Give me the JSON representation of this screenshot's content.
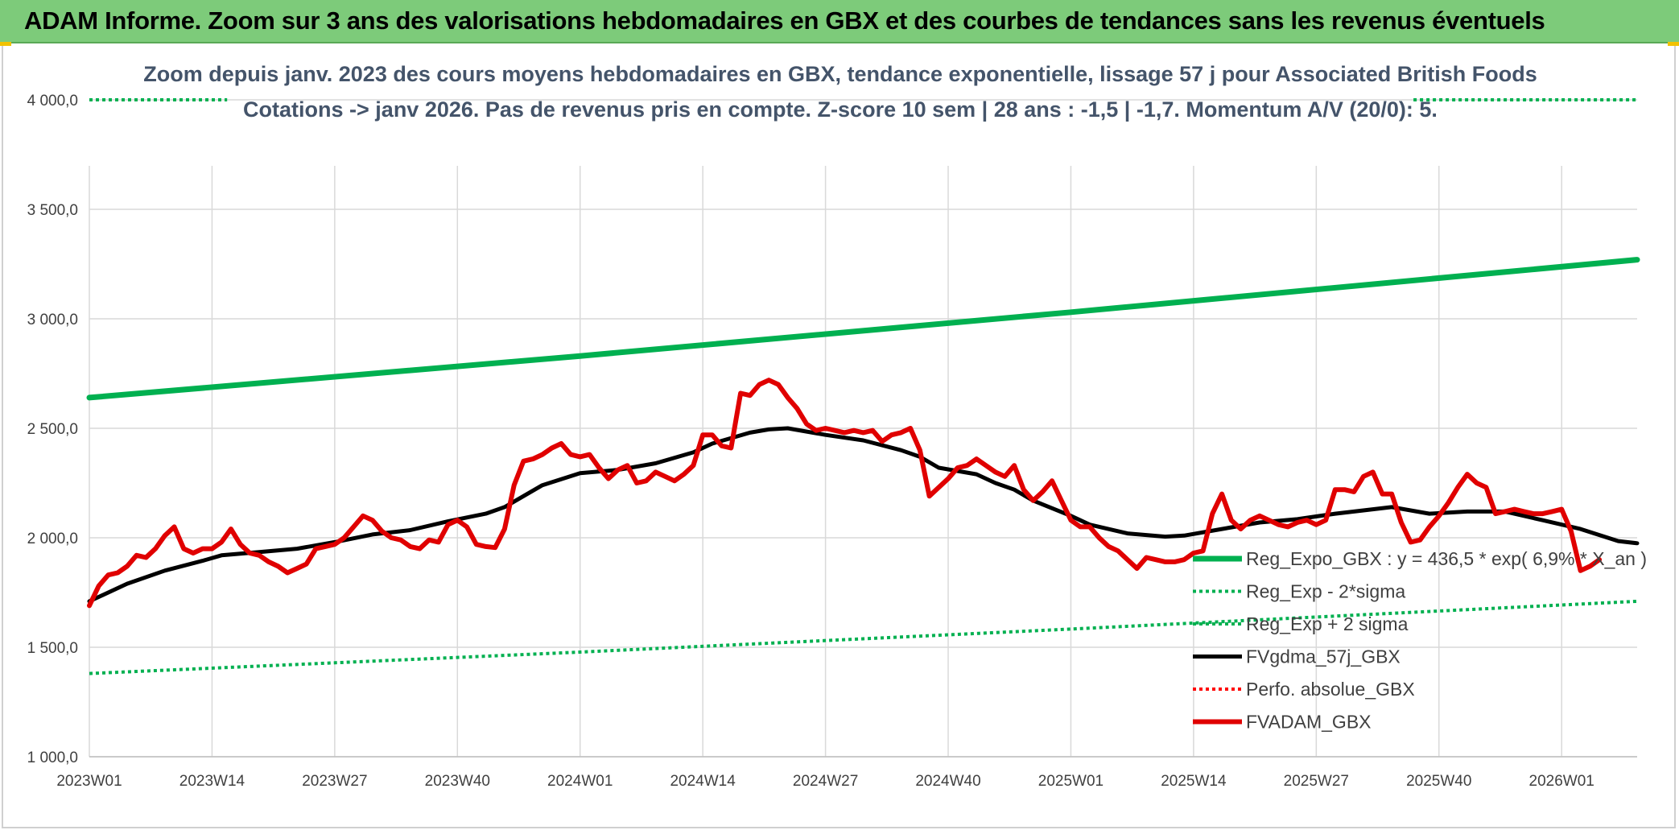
{
  "banner": {
    "title": "ADAM Informe. Zoom sur 3 ans des valorisations hebdomadaires en GBX et des courbes de tendances sans les revenus éventuels"
  },
  "chart_data": {
    "type": "line",
    "title_line1": "Zoom depuis janv. 2023 des cours moyens hebdomadaires en GBX, tendance exponentielle, lissage 57 j pour Associated British Foods",
    "title_line2": "Cotations -> janv 2026. Pas de revenus pris en compte. Z-score 10 sem | 28 ans : -1,5 | -1,7. Momentum A/V (20/0): 5.",
    "ylim": [
      1000,
      4000
    ],
    "y_ticks": [
      1000,
      1500,
      2000,
      2500,
      3000,
      3500,
      4000
    ],
    "y_tick_labels": [
      "1 000,0",
      "1 500,0",
      "2 000,0",
      "2 500,0",
      "3 000,0",
      "3 500,0",
      "4 000,0"
    ],
    "x_range": [
      0,
      164
    ],
    "x_ticks": [
      0,
      13,
      26,
      39,
      52,
      65,
      78,
      91,
      104,
      117,
      130,
      143,
      156
    ],
    "x_tick_labels": [
      "2023W01",
      "2023W14",
      "2023W27",
      "2023W40",
      "2024W01",
      "2024W14",
      "2024W27",
      "2024W40",
      "2025W01",
      "2025W14",
      "2025W27",
      "2025W40",
      "2026W01"
    ],
    "grid": true,
    "legend_position": "bottom-right",
    "series": [
      {
        "name": "Reg_Expo_GBX : y = 436,5 * exp( 6,9% *  X_an )",
        "color": "#00b050",
        "style": "solid",
        "width": 7,
        "points": [
          [
            0,
            2640
          ],
          [
            52,
            2830
          ],
          [
            104,
            3030
          ],
          [
            164,
            3270
          ]
        ]
      },
      {
        "name": "Reg_Exp - 2*sigma",
        "color": "#00b050",
        "style": "dotted",
        "width": 4,
        "points": [
          [
            0,
            1380
          ],
          [
            52,
            1478
          ],
          [
            104,
            1583
          ],
          [
            164,
            1710
          ]
        ]
      },
      {
        "name": "Reg_Exp + 2 sigma",
        "color": "#00b050",
        "style": "dotted",
        "width": 4,
        "points": [
          [
            0,
            4000
          ],
          [
            14.6,
            4000
          ]
        ],
        "points_b": [
          [
            140.3,
            4000
          ],
          [
            164,
            4000
          ]
        ]
      },
      {
        "name": "FVgdma_57j_GBX",
        "color": "#000000",
        "style": "solid",
        "width": 5,
        "points": [
          [
            0,
            1710
          ],
          [
            4,
            1790
          ],
          [
            8,
            1850
          ],
          [
            12,
            1895
          ],
          [
            14,
            1920
          ],
          [
            18,
            1935
          ],
          [
            22,
            1950
          ],
          [
            26,
            1980
          ],
          [
            30,
            2015
          ],
          [
            34,
            2035
          ],
          [
            38,
            2075
          ],
          [
            42,
            2110
          ],
          [
            44,
            2140
          ],
          [
            48,
            2240
          ],
          [
            52,
            2295
          ],
          [
            56,
            2310
          ],
          [
            60,
            2340
          ],
          [
            64,
            2390
          ],
          [
            66,
            2430
          ],
          [
            70,
            2480
          ],
          [
            72,
            2495
          ],
          [
            74,
            2500
          ],
          [
            78,
            2470
          ],
          [
            82,
            2445
          ],
          [
            86,
            2400
          ],
          [
            88,
            2370
          ],
          [
            90,
            2320
          ],
          [
            94,
            2290
          ],
          [
            96,
            2250
          ],
          [
            98,
            2220
          ],
          [
            100,
            2170
          ],
          [
            104,
            2100
          ],
          [
            106,
            2060
          ],
          [
            110,
            2020
          ],
          [
            114,
            2005
          ],
          [
            116,
            2010
          ],
          [
            120,
            2040
          ],
          [
            124,
            2070
          ],
          [
            128,
            2085
          ],
          [
            132,
            2110
          ],
          [
            136,
            2130
          ],
          [
            138,
            2140
          ],
          [
            142,
            2110
          ],
          [
            146,
            2120
          ],
          [
            150,
            2120
          ],
          [
            154,
            2080
          ],
          [
            158,
            2040
          ],
          [
            162,
            1985
          ],
          [
            164,
            1975
          ]
        ]
      },
      {
        "name": "Perfo. absolue_GBX",
        "color": "#ff0000",
        "style": "dotted",
        "width": 4,
        "points": []
      },
      {
        "name": "FVADAM_GBX",
        "color": "#e00000",
        "style": "solid",
        "width": 6,
        "points": [
          [
            0,
            1690
          ],
          [
            1,
            1780
          ],
          [
            2,
            1830
          ],
          [
            3,
            1840
          ],
          [
            4,
            1870
          ],
          [
            5,
            1920
          ],
          [
            6,
            1910
          ],
          [
            7,
            1950
          ],
          [
            8,
            2010
          ],
          [
            9,
            2050
          ],
          [
            10,
            1950
          ],
          [
            11,
            1930
          ],
          [
            12,
            1950
          ],
          [
            13,
            1950
          ],
          [
            14,
            1980
          ],
          [
            15,
            2040
          ],
          [
            16,
            1970
          ],
          [
            17,
            1930
          ],
          [
            18,
            1920
          ],
          [
            19,
            1890
          ],
          [
            20,
            1870
          ],
          [
            21,
            1840
          ],
          [
            22,
            1860
          ],
          [
            23,
            1880
          ],
          [
            24,
            1950
          ],
          [
            25,
            1960
          ],
          [
            26,
            1970
          ],
          [
            27,
            2000
          ],
          [
            28,
            2050
          ],
          [
            29,
            2100
          ],
          [
            30,
            2080
          ],
          [
            31,
            2030
          ],
          [
            32,
            2000
          ],
          [
            33,
            1990
          ],
          [
            34,
            1960
          ],
          [
            35,
            1950
          ],
          [
            36,
            1990
          ],
          [
            37,
            1980
          ],
          [
            38,
            2060
          ],
          [
            39,
            2080
          ],
          [
            40,
            2050
          ],
          [
            41,
            1970
          ],
          [
            42,
            1960
          ],
          [
            43,
            1955
          ],
          [
            44,
            2040
          ],
          [
            45,
            2240
          ],
          [
            46,
            2350
          ],
          [
            47,
            2360
          ],
          [
            48,
            2380
          ],
          [
            49,
            2410
          ],
          [
            50,
            2430
          ],
          [
            51,
            2380
          ],
          [
            52,
            2370
          ],
          [
            53,
            2380
          ],
          [
            54,
            2320
          ],
          [
            55,
            2270
          ],
          [
            56,
            2310
          ],
          [
            57,
            2330
          ],
          [
            58,
            2250
          ],
          [
            59,
            2260
          ],
          [
            60,
            2300
          ],
          [
            61,
            2280
          ],
          [
            62,
            2260
          ],
          [
            63,
            2290
          ],
          [
            64,
            2330
          ],
          [
            65,
            2470
          ],
          [
            66,
            2470
          ],
          [
            67,
            2420
          ],
          [
            68,
            2410
          ],
          [
            69,
            2660
          ],
          [
            70,
            2650
          ],
          [
            71,
            2700
          ],
          [
            72,
            2720
          ],
          [
            73,
            2700
          ],
          [
            74,
            2640
          ],
          [
            75,
            2590
          ],
          [
            76,
            2520
          ],
          [
            77,
            2490
          ],
          [
            78,
            2500
          ],
          [
            79,
            2490
          ],
          [
            80,
            2480
          ],
          [
            81,
            2490
          ],
          [
            82,
            2480
          ],
          [
            83,
            2490
          ],
          [
            84,
            2440
          ],
          [
            85,
            2470
          ],
          [
            86,
            2480
          ],
          [
            87,
            2500
          ],
          [
            88,
            2400
          ],
          [
            89,
            2190
          ],
          [
            90,
            2230
          ],
          [
            91,
            2270
          ],
          [
            92,
            2320
          ],
          [
            93,
            2330
          ],
          [
            94,
            2360
          ],
          [
            95,
            2330
          ],
          [
            96,
            2300
          ],
          [
            97,
            2280
          ],
          [
            98,
            2330
          ],
          [
            99,
            2220
          ],
          [
            100,
            2170
          ],
          [
            101,
            2210
          ],
          [
            102,
            2260
          ],
          [
            103,
            2170
          ],
          [
            104,
            2080
          ],
          [
            105,
            2050
          ],
          [
            106,
            2050
          ],
          [
            107,
            2000
          ],
          [
            108,
            1960
          ],
          [
            109,
            1940
          ],
          [
            110,
            1900
          ],
          [
            111,
            1860
          ],
          [
            112,
            1910
          ],
          [
            113,
            1900
          ],
          [
            114,
            1890
          ],
          [
            115,
            1890
          ],
          [
            116,
            1900
          ],
          [
            117,
            1930
          ],
          [
            118,
            1940
          ],
          [
            119,
            2110
          ],
          [
            120,
            2200
          ],
          [
            121,
            2080
          ],
          [
            122,
            2040
          ],
          [
            123,
            2080
          ],
          [
            124,
            2100
          ],
          [
            125,
            2080
          ],
          [
            126,
            2060
          ],
          [
            127,
            2050
          ],
          [
            128,
            2070
          ],
          [
            129,
            2080
          ],
          [
            130,
            2060
          ],
          [
            131,
            2080
          ],
          [
            132,
            2220
          ],
          [
            133,
            2220
          ],
          [
            134,
            2210
          ],
          [
            135,
            2280
          ],
          [
            136,
            2300
          ],
          [
            137,
            2200
          ],
          [
            138,
            2200
          ],
          [
            139,
            2070
          ],
          [
            140,
            1980
          ],
          [
            141,
            1990
          ],
          [
            142,
            2050
          ],
          [
            143,
            2100
          ],
          [
            144,
            2160
          ],
          [
            145,
            2230
          ],
          [
            146,
            2290
          ],
          [
            147,
            2250
          ],
          [
            148,
            2230
          ],
          [
            149,
            2110
          ],
          [
            150,
            2120
          ],
          [
            151,
            2130
          ],
          [
            152,
            2120
          ],
          [
            153,
            2110
          ],
          [
            154,
            2110
          ],
          [
            155,
            2120
          ],
          [
            156,
            2130
          ],
          [
            157,
            2030
          ],
          [
            158,
            1850
          ],
          [
            159,
            1870
          ],
          [
            160,
            1900
          ]
        ]
      }
    ]
  }
}
